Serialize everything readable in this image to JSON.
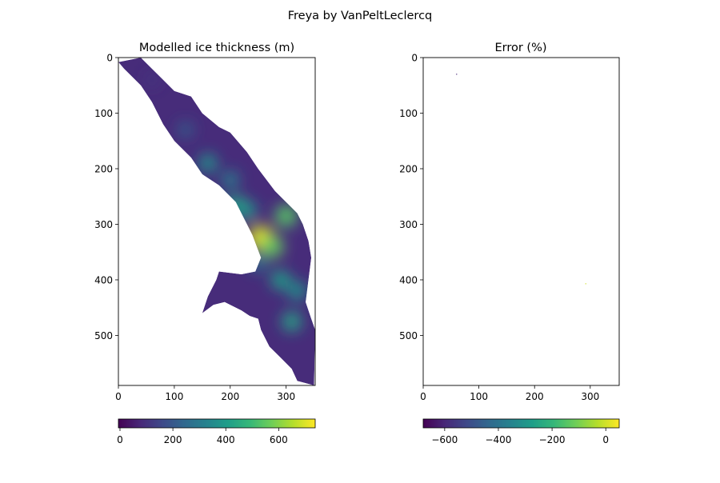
{
  "suptitle": "Freya by VanPeltLeclercq",
  "colormap": {
    "name": "viridis",
    "stops": [
      "#440154",
      "#482878",
      "#3e4989",
      "#31688e",
      "#26828e",
      "#1f9e89",
      "#35b779",
      "#6ece58",
      "#b5de2b",
      "#fde725"
    ]
  },
  "chart_data": [
    {
      "type": "heatmap",
      "title": "Modelled ice thickness (m)",
      "xlim": [
        0,
        352
      ],
      "ylim": [
        590,
        0
      ],
      "x_ticks": [
        0,
        100,
        200,
        300
      ],
      "y_ticks": [
        0,
        100,
        200,
        300,
        400,
        500
      ],
      "colorbar": {
        "range": [
          -6,
          738
        ],
        "ticks": [
          0,
          200,
          400,
          600
        ],
        "orientation": "horizontal"
      },
      "glacier_outline": [
        [
          0,
          8
        ],
        [
          40,
          0
        ],
        [
          60,
          20
        ],
        [
          80,
          40
        ],
        [
          100,
          60
        ],
        [
          130,
          70
        ],
        [
          150,
          100
        ],
        [
          180,
          125
        ],
        [
          200,
          135
        ],
        [
          230,
          170
        ],
        [
          250,
          200
        ],
        [
          280,
          240
        ],
        [
          300,
          260
        ],
        [
          320,
          280
        ],
        [
          330,
          300
        ],
        [
          340,
          330
        ],
        [
          345,
          360
        ],
        [
          340,
          400
        ],
        [
          335,
          440
        ],
        [
          345,
          470
        ],
        [
          352,
          490
        ],
        [
          350,
          590
        ],
        [
          320,
          582
        ],
        [
          310,
          560
        ],
        [
          290,
          540
        ],
        [
          270,
          520
        ],
        [
          255,
          490
        ],
        [
          250,
          470
        ],
        [
          235,
          465
        ],
        [
          220,
          455
        ],
        [
          190,
          440
        ],
        [
          170,
          445
        ],
        [
          150,
          460
        ],
        [
          160,
          430
        ],
        [
          175,
          400
        ],
        [
          180,
          385
        ],
        [
          220,
          390
        ],
        [
          245,
          385
        ],
        [
          255,
          360
        ],
        [
          240,
          320
        ],
        [
          225,
          290
        ],
        [
          210,
          260
        ],
        [
          180,
          230
        ],
        [
          150,
          210
        ],
        [
          130,
          180
        ],
        [
          100,
          150
        ],
        [
          80,
          120
        ],
        [
          60,
          80
        ],
        [
          40,
          50
        ],
        [
          10,
          20
        ]
      ],
      "hotspots": [
        {
          "x": 255,
          "y": 325,
          "value": 700
        },
        {
          "x": 275,
          "y": 340,
          "value": 560
        },
        {
          "x": 300,
          "y": 285,
          "value": 540
        },
        {
          "x": 210,
          "y": 265,
          "value": 430
        },
        {
          "x": 230,
          "y": 275,
          "value": 400
        },
        {
          "x": 160,
          "y": 190,
          "value": 380
        },
        {
          "x": 200,
          "y": 220,
          "value": 330
        },
        {
          "x": 290,
          "y": 400,
          "value": 420
        },
        {
          "x": 320,
          "y": 420,
          "value": 380
        },
        {
          "x": 310,
          "y": 475,
          "value": 430
        },
        {
          "x": 120,
          "y": 130,
          "value": 230
        },
        {
          "x": 250,
          "y": 370,
          "value": 300
        },
        {
          "x": 60,
          "y": 40,
          "value": 120
        }
      ]
    },
    {
      "type": "heatmap",
      "title": "Error (%)",
      "xlim": [
        0,
        352
      ],
      "ylim": [
        590,
        0
      ],
      "x_ticks": [
        0,
        100,
        200,
        300
      ],
      "y_ticks": [
        0,
        100,
        200,
        300,
        400,
        500
      ],
      "colorbar": {
        "range": [
          -680,
          50
        ],
        "ticks": [
          -600,
          -400,
          -200,
          0
        ],
        "orientation": "horizontal"
      },
      "points": [
        {
          "x": 60,
          "y": 30,
          "value": -600
        },
        {
          "x": 292,
          "y": 407,
          "value": 0
        }
      ]
    }
  ]
}
